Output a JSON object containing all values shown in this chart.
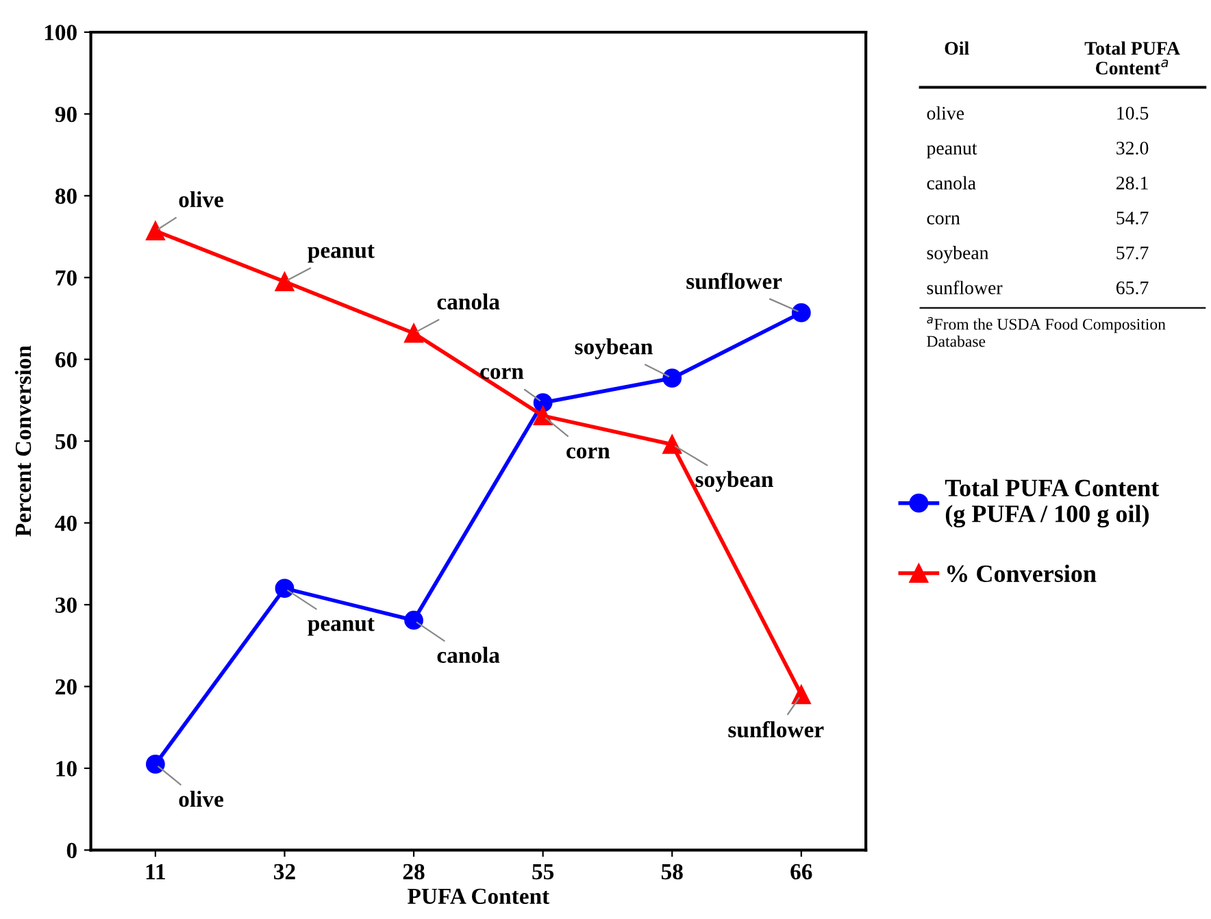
{
  "chart_data": {
    "type": "line",
    "xlabel": "PUFA Content",
    "ylabel": "Percent Conversion",
    "categories": [
      "11",
      "32",
      "28",
      "55",
      "58",
      "66"
    ],
    "ylim": [
      0,
      100
    ],
    "yticks": [
      0,
      10,
      20,
      30,
      40,
      50,
      60,
      70,
      80,
      90,
      100
    ],
    "grid": false,
    "legend": "right",
    "series": [
      {
        "name": "Total PUFA Content\n(g PUFA / 100 g oil)",
        "color": "#0000ff",
        "marker": "circle",
        "values": [
          10.5,
          32.0,
          28.1,
          54.7,
          57.7,
          65.7
        ]
      },
      {
        "name": "% Conversion",
        "color": "#ff0000",
        "marker": "triangle",
        "values": [
          75.7,
          69.5,
          63.2,
          53.1,
          49.6,
          19.0
        ]
      }
    ],
    "annotations": [
      "Oil",
      "Total PUFA Content$^{a}$",
      "olive",
      "10.5",
      "peanut",
      "32.0",
      "canola",
      "28.1",
      "corn",
      "54.7",
      "soybean",
      "57.7",
      "sunflower",
      "65.7",
      "$^{a}$From the USDA Food Composition Database",
      {
        "text": "olive",
        "x": "11",
        "y": 10.5
      },
      {
        "text": "peanut",
        "x": "32",
        "y": 32.0
      },
      {
        "text": "canola",
        "x": "28",
        "y": 28.1
      },
      {
        "text": "corn",
        "x": "55",
        "y": 54.7
      },
      {
        "text": "soybean",
        "x": "58",
        "y": 57.7
      },
      {
        "text": "sunflower",
        "x": "66",
        "y": 65.7
      },
      {
        "text": "olive",
        "x": "11",
        "y": 75.7
      },
      {
        "text": "peanut",
        "x": "32",
        "y": 69.5
      },
      {
        "text": "canola",
        "x": "28",
        "y": 63.2
      },
      {
        "text": "corn",
        "x": "55",
        "y": 53.1
      },
      {
        "text": "soybean",
        "x": "58",
        "y": 49.6
      },
      {
        "text": "sunflower",
        "x": "66",
        "y": 19.0
      }
    ]
  }
}
